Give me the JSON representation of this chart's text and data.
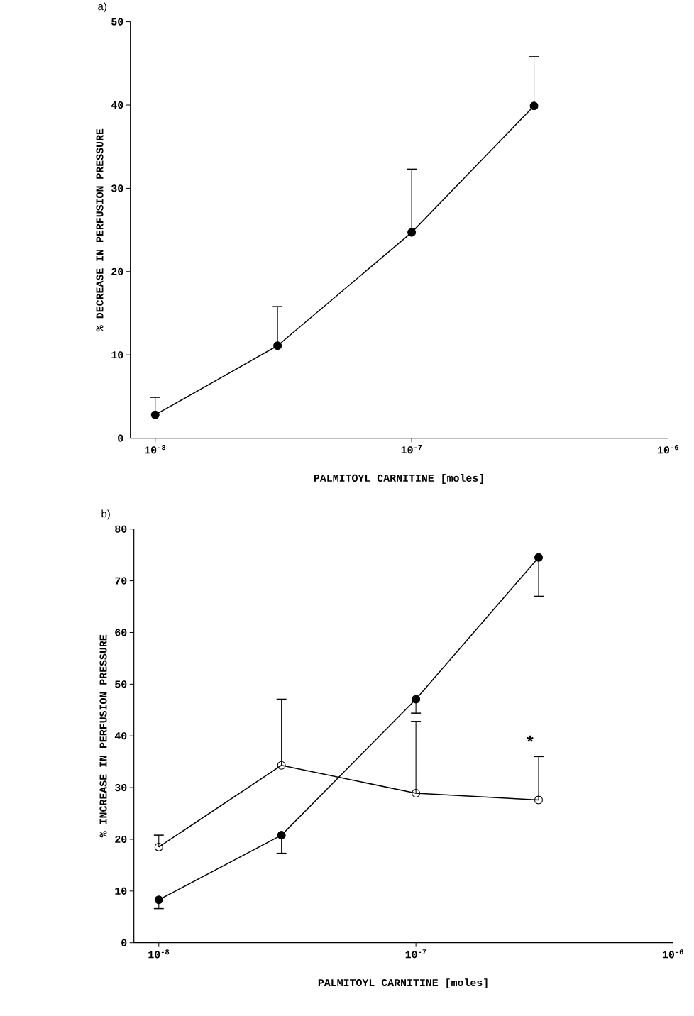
{
  "chart_data": [
    {
      "type": "line",
      "title": "a)",
      "xlabel": "PALMITOYL CARNITINE [moles]",
      "ylabel": "% DECREASE IN PERFUSION PRESSURE",
      "log": "x",
      "marker": "circle",
      "x": [
        1e-08,
        3e-08,
        1e-07,
        3e-07
      ],
      "series": [
        {
          "color": "#000000",
          "values": [
            2.8,
            11.1,
            24.7,
            39.9
          ],
          "errors": [
            [
              2.8,
              4.9
            ],
            [
              11.1,
              15.8
            ],
            [
              24.7,
              32.3
            ],
            [
              39.9,
              45.8
            ]
          ]
        }
      ],
      "xlim": [
        8e-09,
        1e-06
      ],
      "ylim": [
        0,
        50
      ],
      "xticks": [
        {
          "value": 1e-08,
          "label": "10$^{-8}$"
        },
        {
          "value": 1e-07,
          "label": "10$^{-7}$"
        },
        {
          "value": 1e-06,
          "label": "10$^{-6}$"
        }
      ],
      "yticks": [
        0,
        10,
        20,
        30,
        40,
        50
      ]
    },
    {
      "type": "line",
      "title": "b)",
      "xlabel": "PALMITOYL CARNITINE [moles]",
      "ylabel": "% INCREASE IN PERFUSION PRESSURE",
      "log": "x",
      "marker": "circle",
      "x": [
        1e-08,
        3e-08,
        1e-07,
        3e-07
      ],
      "series": [
        {
          "color": "#000000",
          "values": [
            8.3,
            20.8,
            47.1,
            74.5
          ],
          "errors": [
            [
              6.6,
              8.3
            ],
            [
              17.3,
              20.8
            ],
            [
              44.4,
              47.1
            ],
            [
              67.0,
              74.5
            ]
          ]
        },
        {
          "color": "#000000",
          "values": [
            18.5,
            34.3,
            28.9,
            27.6
          ],
          "errors": [
            [
              18.5,
              20.8
            ],
            [
              34.3,
              47.1
            ],
            [
              28.9,
              42.8
            ],
            [
              27.6,
              36.0
            ]
          ]
        }
      ],
      "xlim": [
        8e-09,
        1e-06
      ],
      "ylim": [
        0,
        80
      ],
      "xticks": [
        {
          "value": 1e-08,
          "label": "10$^{-8}$"
        },
        {
          "value": 1e-07,
          "label": "10$^{-7}$"
        },
        {
          "value": 1e-06,
          "label": "10$^{-6}$"
        }
      ],
      "yticks": [
        0,
        10,
        20,
        30,
        40,
        50,
        60,
        70,
        80
      ],
      "annotations": [
        "*"
      ]
    }
  ]
}
